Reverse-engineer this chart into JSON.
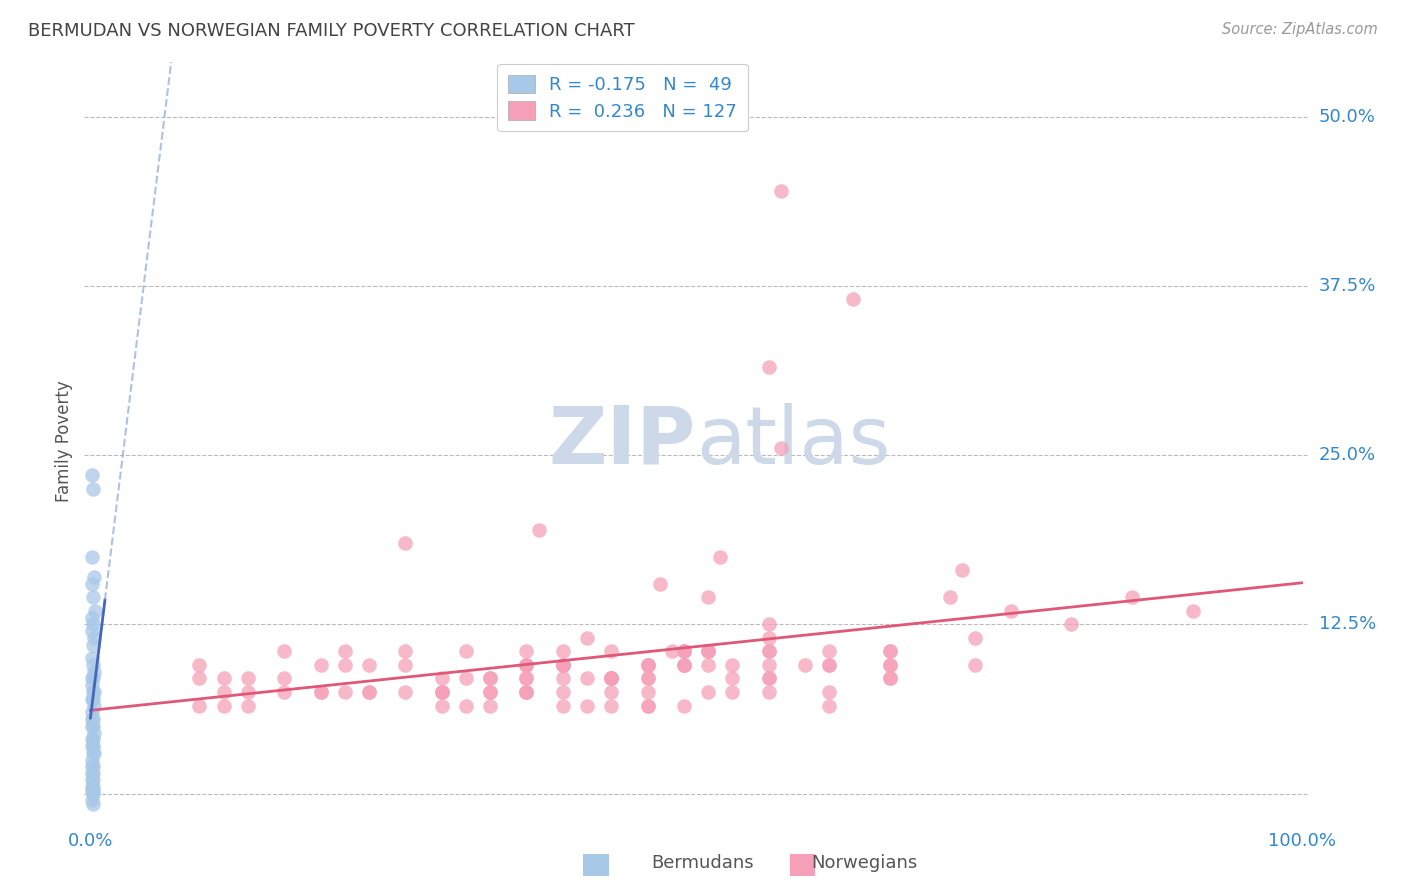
{
  "title": "BERMUDAN VS NORWEGIAN FAMILY POVERTY CORRELATION CHART",
  "source": "Source: ZipAtlas.com",
  "ylabel_label": "Family Poverty",
  "xlim": [
    0.0,
    1.0
  ],
  "ylim": [
    -0.02,
    0.54
  ],
  "bermudan_R": -0.175,
  "bermudan_N": 49,
  "norwegian_R": 0.236,
  "norwegian_N": 127,
  "color_blue": "#a8c8e8",
  "color_pink": "#f5a0b8",
  "line_blue": "#4466bb",
  "line_blue_dash": "#7799cc",
  "line_pink": "#e05878",
  "watermark_color": "#cdd8e8",
  "background_color": "#ffffff",
  "grid_color": "#bbbbbb",
  "title_color": "#444444",
  "tick_color": "#3388cc",
  "source_color": "#999999",
  "bermudan_x": [
    0.001,
    0.002,
    0.001,
    0.003,
    0.001,
    0.002,
    0.004,
    0.001,
    0.002,
    0.001,
    0.003,
    0.002,
    0.001,
    0.002,
    0.003,
    0.001,
    0.002,
    0.001,
    0.002,
    0.003,
    0.001,
    0.002,
    0.003,
    0.001,
    0.002,
    0.001,
    0.002,
    0.001,
    0.003,
    0.002,
    0.001,
    0.002,
    0.001,
    0.002,
    0.003,
    0.001,
    0.002,
    0.001,
    0.002,
    0.001,
    0.002,
    0.001,
    0.002,
    0.001,
    0.002,
    0.001,
    0.002,
    0.001,
    0.002
  ],
  "bermudan_y": [
    0.235,
    0.225,
    0.175,
    0.16,
    0.155,
    0.145,
    0.135,
    0.13,
    0.125,
    0.12,
    0.115,
    0.11,
    0.1,
    0.095,
    0.09,
    0.085,
    0.085,
    0.08,
    0.075,
    0.075,
    0.07,
    0.07,
    0.065,
    0.06,
    0.055,
    0.055,
    0.05,
    0.05,
    0.045,
    0.04,
    0.04,
    0.035,
    0.035,
    0.03,
    0.03,
    0.025,
    0.02,
    0.02,
    0.015,
    0.015,
    0.01,
    0.01,
    0.005,
    0.005,
    0.002,
    0.002,
    0.0,
    -0.005,
    -0.008
  ],
  "norwegian_x": [
    0.57,
    0.63,
    0.56,
    0.57,
    0.72,
    0.52,
    0.37,
    0.51,
    0.47,
    0.36,
    0.41,
    0.49,
    0.36,
    0.53,
    0.48,
    0.43,
    0.59,
    0.26,
    0.56,
    0.39,
    0.61,
    0.46,
    0.51,
    0.33,
    0.46,
    0.56,
    0.43,
    0.39,
    0.66,
    0.29,
    0.36,
    0.49,
    0.43,
    0.56,
    0.33,
    0.61,
    0.46,
    0.51,
    0.39,
    0.66,
    0.29,
    0.73,
    0.49,
    0.56,
    0.43,
    0.39,
    0.66,
    0.29,
    0.36,
    0.16,
    0.21,
    0.09,
    0.13,
    0.19,
    0.26,
    0.31,
    0.11,
    0.23,
    0.16,
    0.21,
    0.09,
    0.13,
    0.19,
    0.26,
    0.31,
    0.11,
    0.23,
    0.36,
    0.41,
    0.49,
    0.36,
    0.53,
    0.61,
    0.46,
    0.51,
    0.33,
    0.46,
    0.56,
    0.43,
    0.39,
    0.66,
    0.29,
    0.36,
    0.49,
    0.43,
    0.56,
    0.33,
    0.61,
    0.46,
    0.51,
    0.39,
    0.66,
    0.29,
    0.73,
    0.49,
    0.56,
    0.43,
    0.39,
    0.66,
    0.71,
    0.76,
    0.81,
    0.86,
    0.91,
    0.16,
    0.21,
    0.09,
    0.13,
    0.19,
    0.26,
    0.31,
    0.11,
    0.23,
    0.36,
    0.41,
    0.49,
    0.36,
    0.53,
    0.61,
    0.46,
    0.51,
    0.33,
    0.46,
    0.56,
    0.43,
    0.39
  ],
  "norwegian_y": [
    0.445,
    0.365,
    0.315,
    0.255,
    0.165,
    0.175,
    0.195,
    0.145,
    0.155,
    0.105,
    0.115,
    0.105,
    0.095,
    0.095,
    0.105,
    0.085,
    0.095,
    0.185,
    0.125,
    0.095,
    0.105,
    0.095,
    0.105,
    0.085,
    0.095,
    0.115,
    0.085,
    0.095,
    0.105,
    0.075,
    0.085,
    0.095,
    0.085,
    0.105,
    0.075,
    0.095,
    0.085,
    0.095,
    0.085,
    0.105,
    0.075,
    0.115,
    0.095,
    0.105,
    0.085,
    0.075,
    0.095,
    0.065,
    0.085,
    0.105,
    0.095,
    0.085,
    0.075,
    0.095,
    0.105,
    0.085,
    0.075,
    0.095,
    0.085,
    0.105,
    0.095,
    0.085,
    0.075,
    0.095,
    0.105,
    0.085,
    0.075,
    0.095,
    0.085,
    0.105,
    0.095,
    0.085,
    0.075,
    0.095,
    0.105,
    0.085,
    0.075,
    0.095,
    0.085,
    0.105,
    0.095,
    0.085,
    0.075,
    0.095,
    0.105,
    0.085,
    0.075,
    0.095,
    0.085,
    0.105,
    0.095,
    0.085,
    0.075,
    0.095,
    0.105,
    0.085,
    0.075,
    0.095,
    0.085,
    0.145,
    0.135,
    0.125,
    0.145,
    0.135,
    0.075,
    0.075,
    0.065,
    0.065,
    0.075,
    0.075,
    0.065,
    0.065,
    0.075,
    0.075,
    0.065,
    0.065,
    0.075,
    0.075,
    0.065,
    0.065,
    0.075,
    0.065,
    0.065,
    0.075,
    0.065,
    0.065
  ]
}
